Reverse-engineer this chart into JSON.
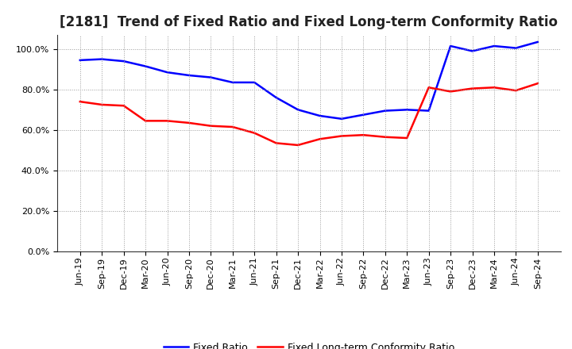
{
  "title": "[2181]  Trend of Fixed Ratio and Fixed Long-term Conformity Ratio",
  "x_labels": [
    "Jun-19",
    "Sep-19",
    "Dec-19",
    "Mar-20",
    "Jun-20",
    "Sep-20",
    "Dec-20",
    "Mar-21",
    "Jun-21",
    "Sep-21",
    "Dec-21",
    "Mar-22",
    "Jun-22",
    "Sep-22",
    "Dec-22",
    "Mar-23",
    "Jun-23",
    "Sep-23",
    "Dec-23",
    "Mar-24",
    "Jun-24",
    "Sep-24"
  ],
  "fixed_ratio_values": [
    94.5,
    95.0,
    94.0,
    91.5,
    88.5,
    87.0,
    86.0,
    83.5,
    83.5,
    76.0,
    70.0,
    67.0,
    65.5,
    67.5,
    69.5,
    70.0,
    69.5,
    101.5,
    99.0,
    101.5,
    100.5,
    103.5
  ],
  "fixed_lt_values": [
    74.0,
    72.5,
    72.0,
    64.5,
    64.5,
    63.5,
    62.0,
    61.5,
    58.5,
    53.5,
    52.5,
    55.5,
    57.0,
    57.5,
    56.5,
    56.0,
    81.0,
    79.0,
    80.5,
    81.0,
    79.5,
    83.0
  ],
  "fixed_ratio_color": "#0000FF",
  "fixed_lt_ratio_color": "#FF0000",
  "ylim": [
    0,
    107
  ],
  "yticks": [
    0,
    20,
    40,
    60,
    80,
    100
  ],
  "background_color": "#FFFFFF",
  "legend_labels": [
    "Fixed Ratio",
    "Fixed Long-term Conformity Ratio"
  ],
  "title_fontsize": 12,
  "tick_fontsize": 8,
  "legend_fontsize": 9
}
